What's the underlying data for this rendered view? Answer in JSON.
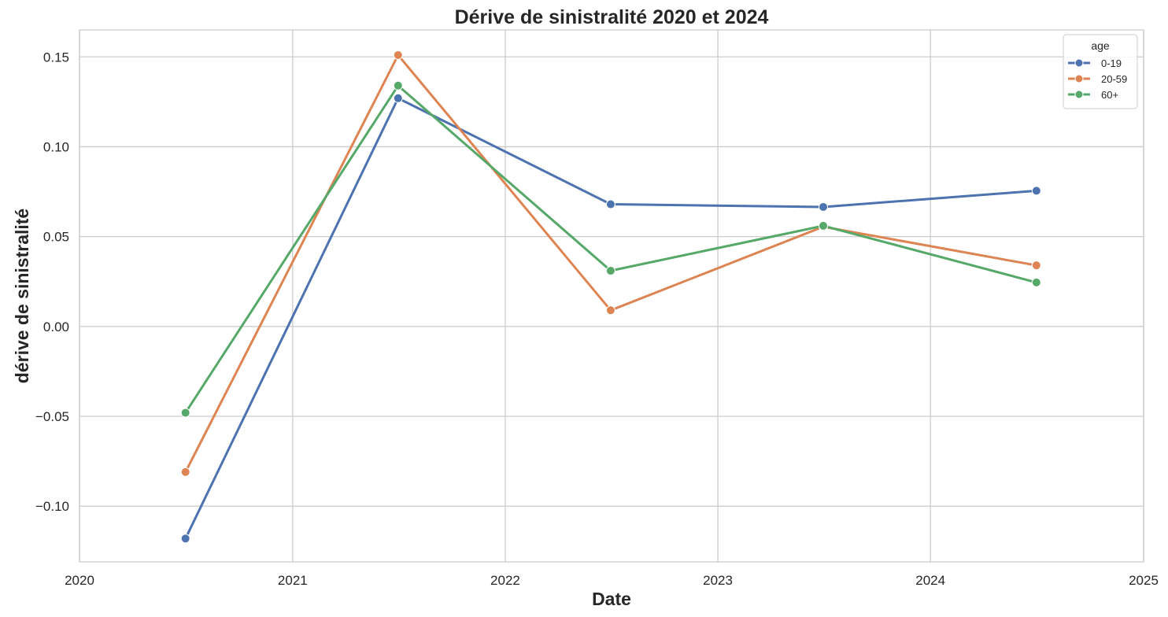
{
  "chart_data": {
    "type": "line",
    "title": "Dérive de sinistralité 2020 et 2024",
    "xlabel": "Date",
    "ylabel": "dérive de sinistralité",
    "x_axis_type": "date",
    "xlim": [
      "2020-01-01",
      "2025-01-01"
    ],
    "ylim": [
      -0.131,
      0.165
    ],
    "xticks": [
      {
        "value": "2020-01-01",
        "label": "2020"
      },
      {
        "value": "2021-01-01",
        "label": "2021"
      },
      {
        "value": "2022-01-01",
        "label": "2022"
      },
      {
        "value": "2023-01-01",
        "label": "2023"
      },
      {
        "value": "2024-01-01",
        "label": "2024"
      },
      {
        "value": "2025-01-01",
        "label": "2025"
      }
    ],
    "yticks": [
      {
        "value": -0.1,
        "label": "−0.10"
      },
      {
        "value": -0.05,
        "label": "−0.05"
      },
      {
        "value": 0.0,
        "label": "0.00"
      },
      {
        "value": 0.05,
        "label": "0.05"
      },
      {
        "value": 0.1,
        "label": "0.10"
      },
      {
        "value": 0.15,
        "label": "0.15"
      }
    ],
    "grid": true,
    "legend": {
      "title": "age",
      "placement": "top-right"
    },
    "x": [
      "2020-07-01",
      "2021-07-01",
      "2022-07-01",
      "2023-07-01",
      "2024-07-01"
    ],
    "series": [
      {
        "name": "0-19",
        "color": "#4c72b0",
        "values": [
          -0.118,
          0.127,
          0.068,
          0.0665,
          0.0755
        ]
      },
      {
        "name": "20-59",
        "color": "#dd8452",
        "values": [
          -0.081,
          0.151,
          0.009,
          0.0555,
          0.034
        ]
      },
      {
        "name": "60+",
        "color": "#55a868",
        "values": [
          -0.048,
          0.134,
          0.031,
          0.056,
          0.0245
        ]
      }
    ]
  }
}
